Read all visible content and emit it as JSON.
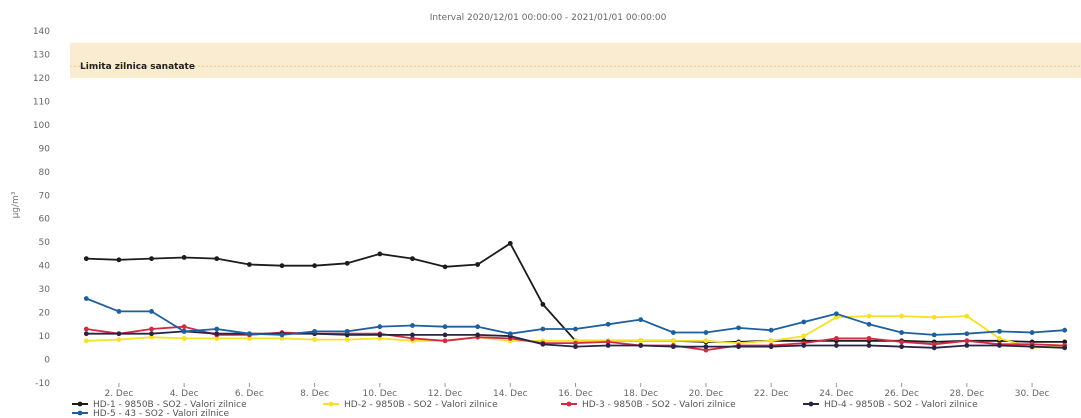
{
  "chart_data": {
    "type": "line",
    "title": "Interval 2020/12/01 00:00:00 - 2021/01/01 00:00:00",
    "ylabel": "µg/m³",
    "ylim": [
      -10,
      140
    ],
    "yticks": [
      -10,
      0,
      10,
      20,
      30,
      40,
      50,
      60,
      70,
      80,
      90,
      100,
      110,
      120,
      130,
      140
    ],
    "x_tick_labels": [
      "2. Dec",
      "4. Dec",
      "6. Dec",
      "8. Dec",
      "10. Dec",
      "12. Dec",
      "14. Dec",
      "16. Dec",
      "18. Dec",
      "20. Dec",
      "22. Dec",
      "24. Dec",
      "26. Dec",
      "28. Dec",
      "30. Dec"
    ],
    "x_tick_days": [
      2,
      4,
      6,
      8,
      10,
      12,
      14,
      16,
      18,
      20,
      22,
      24,
      26,
      28,
      30
    ],
    "x": [
      1,
      2,
      3,
      4,
      5,
      6,
      7,
      8,
      9,
      10,
      11,
      12,
      13,
      14,
      15,
      16,
      17,
      18,
      19,
      20,
      21,
      22,
      23,
      24,
      25,
      26,
      27,
      28,
      29,
      30,
      31
    ],
    "x_range": [
      0.5,
      31.5
    ],
    "limit": {
      "label": "Limita zilnica sanatate",
      "value": 125,
      "band": [
        120,
        135
      ],
      "color": "#f6dcaa"
    },
    "grid": false,
    "legend_position": "bottom",
    "series": [
      {
        "name": "HD-1 - 9850B - SO2 - Valori zilnice",
        "color": "#1c1c1c",
        "values": [
          43,
          42.5,
          43,
          43.5,
          43,
          40.5,
          40,
          40,
          41,
          45,
          43,
          39.5,
          40.5,
          49.5,
          23.5,
          8,
          8,
          8,
          8,
          7.5,
          7.5,
          8,
          8,
          8,
          8,
          8,
          7.5,
          8,
          8,
          7.5,
          7.5
        ]
      },
      {
        "name": "HD-2 - 9850B - SO2 - Valori zilnice",
        "color": "#f5e02a",
        "values": [
          8,
          8.5,
          9.5,
          9,
          9,
          9,
          9,
          8.5,
          8.5,
          9,
          8,
          8,
          9.5,
          8,
          8,
          8,
          8,
          8,
          8,
          8,
          7,
          8,
          10,
          18,
          18.5,
          18.5,
          18,
          18.5,
          9,
          5,
          6
        ]
      },
      {
        "name": "HD-3 - 9850B - SO2 - Valori zilnice",
        "color": "#d22a45",
        "values": [
          13,
          11,
          13,
          14,
          10.5,
          10.5,
          11.5,
          11,
          11,
          11,
          9,
          8,
          9.5,
          9,
          7,
          7,
          7.5,
          6,
          6,
          4,
          6,
          6,
          7,
          9,
          9,
          7.5,
          6.5,
          8,
          6.5,
          6.5,
          6
        ]
      },
      {
        "name": "HD-4 - 9850B - SO2 - Valori zilnice",
        "color": "#2b2345",
        "values": [
          11,
          11,
          11,
          12,
          11,
          11,
          11,
          11,
          10.5,
          10.5,
          10.5,
          10.5,
          10.5,
          10,
          6.5,
          5.5,
          6,
          6,
          5.5,
          5.5,
          5.5,
          5.5,
          6,
          6,
          6,
          5.5,
          5,
          6,
          6,
          5.5,
          5
        ]
      },
      {
        "name": "HD-5 - 43 - SO2 - Valori zilnice",
        "color": "#1f5f9e",
        "values": [
          26,
          20.5,
          20.5,
          12,
          13,
          11,
          10.5,
          12,
          12,
          14,
          14.5,
          14,
          14,
          11,
          13,
          13,
          15,
          17,
          11.5,
          11.5,
          13.5,
          12.5,
          16,
          19.5,
          15,
          11.5,
          10.5,
          11,
          12,
          11.5,
          12.5
        ]
      }
    ]
  }
}
